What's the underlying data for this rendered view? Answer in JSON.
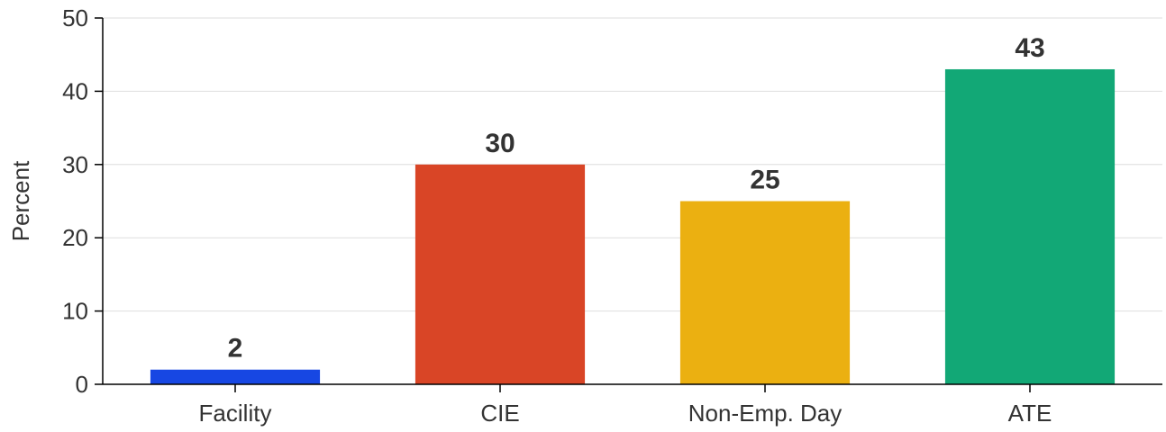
{
  "chart_data": {
    "type": "bar",
    "categories": [
      "Facility",
      "CIE",
      "Non-Emp. Day",
      "ATE"
    ],
    "values": [
      2,
      30,
      25,
      43
    ],
    "data_labels": [
      "2",
      "30",
      "25",
      "43"
    ],
    "colors": [
      "#1747e3",
      "#d94526",
      "#ebb011",
      "#12a876"
    ],
    "title": "",
    "xlabel": "",
    "ylabel": "Percent",
    "ylim": [
      0,
      50
    ],
    "yticks": [
      0,
      10,
      20,
      30,
      40,
      50
    ],
    "ytick_labels": [
      "0",
      "10",
      "20",
      "30",
      "40",
      "50"
    ],
    "grid": true,
    "legend": null
  }
}
